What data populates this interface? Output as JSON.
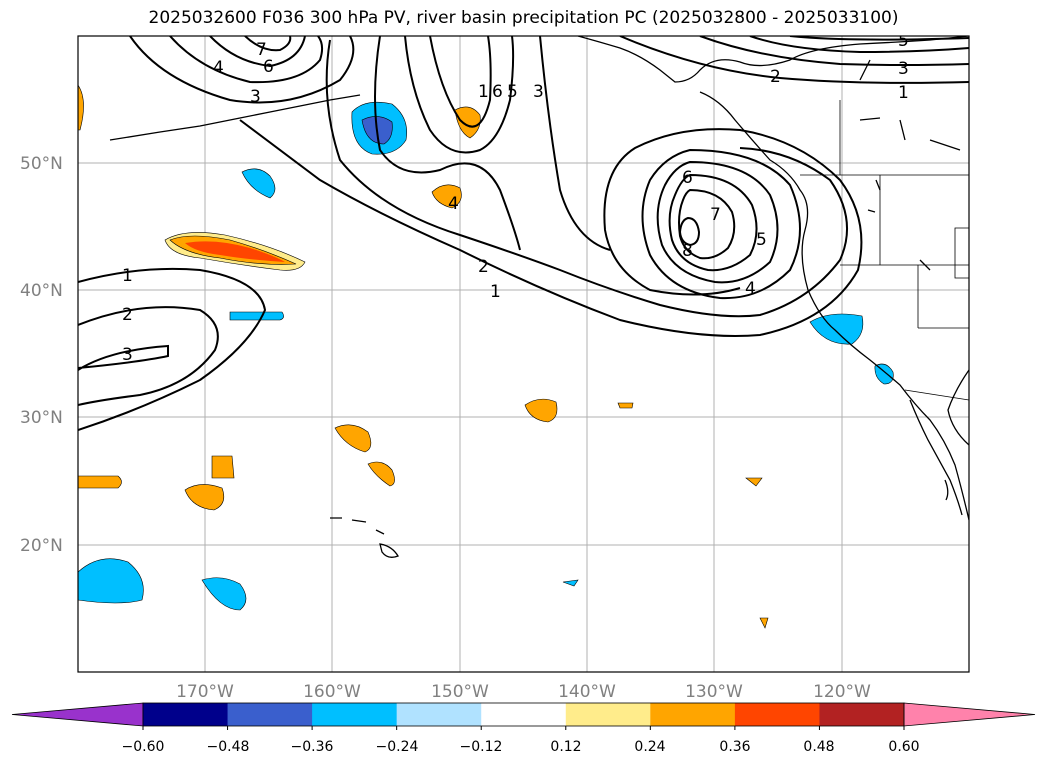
{
  "title": "2025032600 F036 300 hPa PV, river basin precipitation PC (2025032800 - 2025033100)",
  "map": {
    "projection": "equirectangular",
    "lon_range": [
      -180,
      -110
    ],
    "lat_range": [
      10,
      60
    ],
    "lat_ticks": [
      "50°N",
      "40°N",
      "30°N",
      "20°N"
    ],
    "lon_ticks": [
      "170°W",
      "160°W",
      "150°W",
      "140°W",
      "130°W",
      "120°W"
    ],
    "gridlines": true,
    "label_color": "#808080"
  },
  "contours": {
    "field": "300 hPa PV",
    "labels": [
      "7",
      "6",
      "4",
      "3",
      "1",
      "6",
      "5",
      "3",
      "4",
      "5",
      "3",
      "2",
      "1",
      "2",
      "1",
      "6",
      "7",
      "5",
      "4",
      "8",
      "1",
      "2",
      "3"
    ]
  },
  "colorbar": {
    "extend": "both",
    "ticks": [
      "−0.60",
      "−0.48",
      "−0.36",
      "−0.24",
      "−0.12",
      "0.12",
      "0.24",
      "0.36",
      "0.48",
      "0.60"
    ],
    "colors": [
      "#9932cc",
      "#00008b",
      "#3a5fcd",
      "#00bfff",
      "#b0e2ff",
      "#ffffff",
      "#ffec8b",
      "#ffa500",
      "#ff4500",
      "#b22222",
      "#ff82ab"
    ]
  }
}
